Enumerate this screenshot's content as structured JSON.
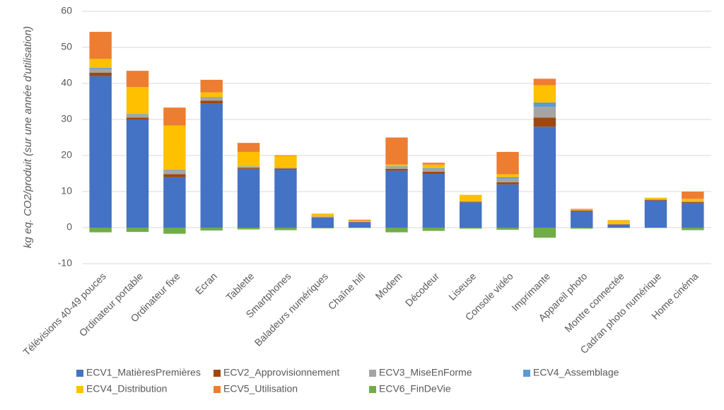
{
  "chart_data": {
    "type": "stacked_bar",
    "y_label": "kg eq. CO2/produit (sur une année d'utilisation)",
    "categories": [
      "Télévisions 40-49 pouces",
      "Ordinateur portable",
      "Ordinateur fixe",
      "Ecran",
      "Tablette",
      "Smartphones",
      "Baladeurs numériques",
      "Chaîne hifi",
      "Modem",
      "Décodeur",
      "Liseuse",
      "Console vidéo",
      "Imprimante",
      "Appareil photo",
      "Montre connectée",
      "Cadran photo numérique",
      "Home cinéma"
    ],
    "series": [
      {
        "name": "ECV1_MatièresPremières",
        "color": "#4472c4",
        "values": [
          42,
          30,
          14,
          34.5,
          16.3,
          16,
          2.8,
          1.5,
          15.8,
          15,
          7,
          12,
          28,
          4.5,
          0.8,
          7.5,
          6.8
        ]
      },
      {
        "name": "ECV2_Approvisionnement",
        "color": "#9e480e",
        "values": [
          1,
          0.5,
          0.8,
          0.7,
          0.3,
          0.4,
          0.1,
          0.1,
          0.5,
          0.5,
          0.2,
          0.6,
          2.5,
          0.2,
          0.1,
          0.2,
          0.3
        ]
      },
      {
        "name": "ECV3_MiseEnForme",
        "color": "#a5a5a5",
        "values": [
          1,
          0.8,
          1,
          0.8,
          0.3,
          0.2,
          0.2,
          0.1,
          0.5,
          0.8,
          0.1,
          1,
          3,
          0.1,
          0.1,
          0.2,
          0.2
        ]
      },
      {
        "name": "ECV4_Assemblage",
        "color": "#5b9bd5",
        "values": [
          0.3,
          0.2,
          0.2,
          0.2,
          0.1,
          0.1,
          0,
          0,
          0.2,
          0.2,
          0,
          0.4,
          1.2,
          0,
          0,
          0,
          0.1
        ]
      },
      {
        "name": "ECV4_Distribution",
        "color": "#ffc000",
        "values": [
          2.5,
          7.5,
          12.3,
          1.3,
          4,
          3.2,
          0.8,
          0.2,
          0.5,
          1,
          1.8,
          0.8,
          4.8,
          0.2,
          1,
          0.4,
          0.6
        ]
      },
      {
        "name": "ECV5_Utilisation",
        "color": "#ed7d31",
        "values": [
          7.5,
          4.5,
          5,
          3.5,
          2.5,
          0.2,
          0,
          0.3,
          7.5,
          0.5,
          0,
          6.2,
          1.8,
          0.2,
          0.1,
          0,
          2
        ]
      },
      {
        "name": "ECV6_FinDeVie",
        "color": "#70ad47",
        "values": [
          -1.3,
          -1.2,
          -1.7,
          -0.8,
          -0.5,
          -0.7,
          -0.2,
          -0.1,
          -1.3,
          -0.9,
          -0.3,
          -0.6,
          -2.8,
          -0.3,
          -0.1,
          -0.1,
          -0.7
        ]
      }
    ],
    "ylim": [
      -10,
      60
    ],
    "yticks": [
      -10,
      0,
      10,
      20,
      30,
      40,
      50,
      60
    ],
    "grid": true
  }
}
